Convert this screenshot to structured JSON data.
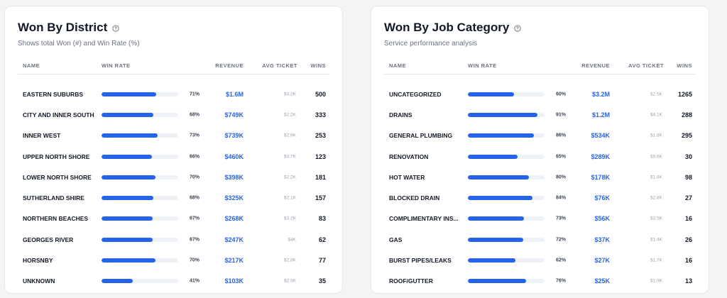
{
  "district": {
    "title": "Won By District",
    "subtitle": "Shows total Won (#) and Win Rate (%)",
    "columns": {
      "name": "NAME",
      "win_rate": "WIN RATE",
      "revenue": "REVENUE",
      "avg_ticket": "AVG TICKET",
      "wins": "WINS"
    },
    "rows": [
      {
        "name": "EASTERN SUBURBS",
        "win_rate": 71,
        "pct": "71%",
        "revenue": "$1.6M",
        "avg": "$3.2K",
        "wins": "500"
      },
      {
        "name": "CITY AND INNER SOUTH",
        "win_rate": 68,
        "pct": "68%",
        "revenue": "$749K",
        "avg": "$2.2K",
        "wins": "333"
      },
      {
        "name": "INNER WEST",
        "win_rate": 73,
        "pct": "73%",
        "revenue": "$739K",
        "avg": "$2.9K",
        "wins": "253"
      },
      {
        "name": "UPPER NORTH SHORE",
        "win_rate": 66,
        "pct": "66%",
        "revenue": "$460K",
        "avg": "$3.7K",
        "wins": "123"
      },
      {
        "name": "LOWER NORTH SHORE",
        "win_rate": 70,
        "pct": "70%",
        "revenue": "$398K",
        "avg": "$2.2K",
        "wins": "181"
      },
      {
        "name": "SUTHERLAND SHIRE",
        "win_rate": 68,
        "pct": "68%",
        "revenue": "$325K",
        "avg": "$2.1K",
        "wins": "157"
      },
      {
        "name": "NORTHERN BEACHES",
        "win_rate": 67,
        "pct": "67%",
        "revenue": "$268K",
        "avg": "$3.2K",
        "wins": "83"
      },
      {
        "name": "GEORGES RIVER",
        "win_rate": 67,
        "pct": "67%",
        "revenue": "$247K",
        "avg": "$4K",
        "wins": "62"
      },
      {
        "name": "HORSNBY",
        "win_rate": 70,
        "pct": "70%",
        "revenue": "$217K",
        "avg": "$2.8K",
        "wins": "77"
      },
      {
        "name": "UNKNOWN",
        "win_rate": 41,
        "pct": "41%",
        "revenue": "$103K",
        "avg": "$2.9K",
        "wins": "35"
      }
    ]
  },
  "category": {
    "title": "Won By Job Category",
    "subtitle": "Service performance analysis",
    "columns": {
      "name": "NAME",
      "win_rate": "WIN RATE",
      "revenue": "REVENUE",
      "avg_ticket": "AVG TICKET",
      "wins": "WINS"
    },
    "rows": [
      {
        "name": "UNCATEGORIZED",
        "win_rate": 60,
        "pct": "60%",
        "revenue": "$3.2M",
        "avg": "$2.5K",
        "wins": "1265"
      },
      {
        "name": "DRAINS",
        "win_rate": 91,
        "pct": "91%",
        "revenue": "$1.2M",
        "avg": "$4.1K",
        "wins": "288"
      },
      {
        "name": "GENERAL PLUMBING",
        "win_rate": 86,
        "pct": "86%",
        "revenue": "$534K",
        "avg": "$1.8K",
        "wins": "295"
      },
      {
        "name": "RENOVATION",
        "win_rate": 65,
        "pct": "65%",
        "revenue": "$289K",
        "avg": "$9.6K",
        "wins": "30"
      },
      {
        "name": "HOT WATER",
        "win_rate": 80,
        "pct": "80%",
        "revenue": "$178K",
        "avg": "$1.8K",
        "wins": "98"
      },
      {
        "name": "BLOCKED DRAIN",
        "win_rate": 84,
        "pct": "84%",
        "revenue": "$76K",
        "avg": "$2.8K",
        "wins": "27"
      },
      {
        "name": "COMPLIMENTARY INS...",
        "win_rate": 73,
        "pct": "73%",
        "revenue": "$56K",
        "avg": "$3.5K",
        "wins": "16"
      },
      {
        "name": "GAS",
        "win_rate": 72,
        "pct": "72%",
        "revenue": "$37K",
        "avg": "$1.4K",
        "wins": "26"
      },
      {
        "name": "BURST PIPES/LEAKS",
        "win_rate": 62,
        "pct": "62%",
        "revenue": "$27K",
        "avg": "$1.7K",
        "wins": "16"
      },
      {
        "name": "ROOF/GUTTER",
        "win_rate": 76,
        "pct": "76%",
        "revenue": "$25K",
        "avg": "$1.9K",
        "wins": "13"
      }
    ]
  },
  "colors": {
    "accent": "#2563eb",
    "bar_track": "#eef2f7",
    "muted": "#6b7280"
  },
  "icons": {
    "info": "info-circle-icon"
  }
}
